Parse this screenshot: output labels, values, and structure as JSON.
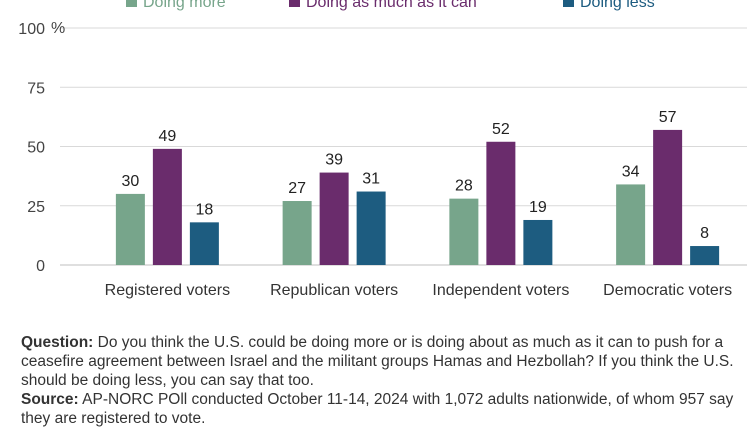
{
  "chart_data": {
    "type": "bar",
    "categories": [
      "Registered voters",
      "Republican voters",
      "Independent voters",
      "Democratic voters"
    ],
    "series": [
      {
        "name": "Doing more",
        "color": "#77a58b",
        "values": [
          30,
          27,
          28,
          34
        ]
      },
      {
        "name": "Doing as much as it can",
        "color": "#6a2c6c",
        "values": [
          49,
          39,
          52,
          57
        ]
      },
      {
        "name": "Doing less",
        "color": "#1d5c80",
        "values": [
          18,
          31,
          19,
          8
        ]
      }
    ],
    "yticks": [
      "0",
      "25",
      "50",
      "75",
      "100"
    ],
    "ylabel": "%",
    "ylim": [
      0,
      100
    ],
    "grid": true,
    "legend": "top"
  },
  "notes": {
    "question_label": "Question:",
    "question_text": "Do you think the U.S. could be doing more or is doing about as much as it can to push for a ceasefire agreement between Israel and the militant groups Hamas and Hezbollah? If you think the U.S. should be doing less, you can say that too.",
    "source_label": "Source:",
    "source_text": "AP-NORC POll conducted October 11-14, 2024 with 1,072 adults nationwide, of whom 957 say they are registered to vote."
  }
}
